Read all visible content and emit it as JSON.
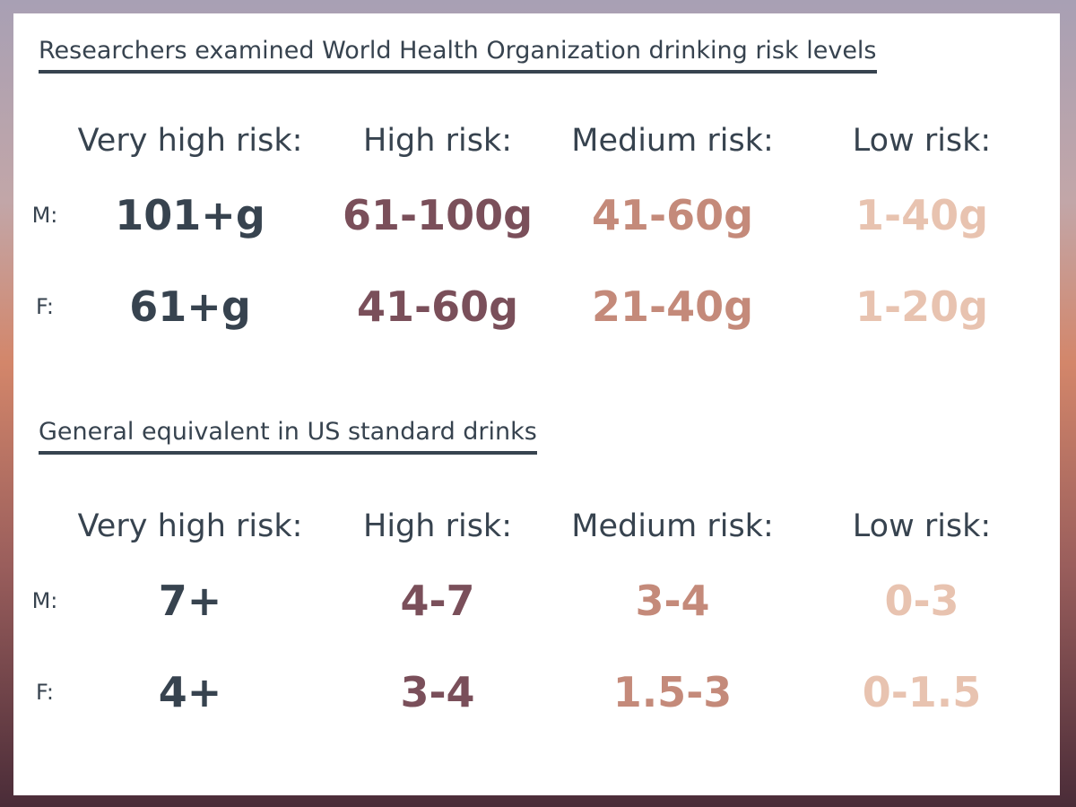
{
  "section1": {
    "title": "Researchers examined World Health Organization drinking risk levels",
    "headers": [
      "Very high risk:",
      "High risk:",
      "Medium risk:",
      "Low risk:"
    ],
    "rows": [
      {
        "label": "M:",
        "values": [
          "101+g",
          "61-100g",
          "41-60g",
          "1-40g"
        ]
      },
      {
        "label": "F:",
        "values": [
          "61+g",
          "41-60g",
          "21-40g",
          "1-20g"
        ]
      }
    ]
  },
  "section2": {
    "title": "General equivalent in US standard drinks",
    "headers": [
      "Very high risk:",
      "High risk:",
      "Medium risk:",
      "Low risk:"
    ],
    "rows": [
      {
        "label": "M:",
        "values": [
          "7+",
          "4-7",
          "3-4",
          "0-3"
        ]
      },
      {
        "label": "F:",
        "values": [
          "4+",
          "3-4",
          "1.5-3",
          "0-1.5"
        ]
      }
    ]
  },
  "colors": {
    "very_high": "#37434f",
    "high": "#7a4f5a",
    "medium": "#c48a7a",
    "low": "#e8c3b0"
  }
}
